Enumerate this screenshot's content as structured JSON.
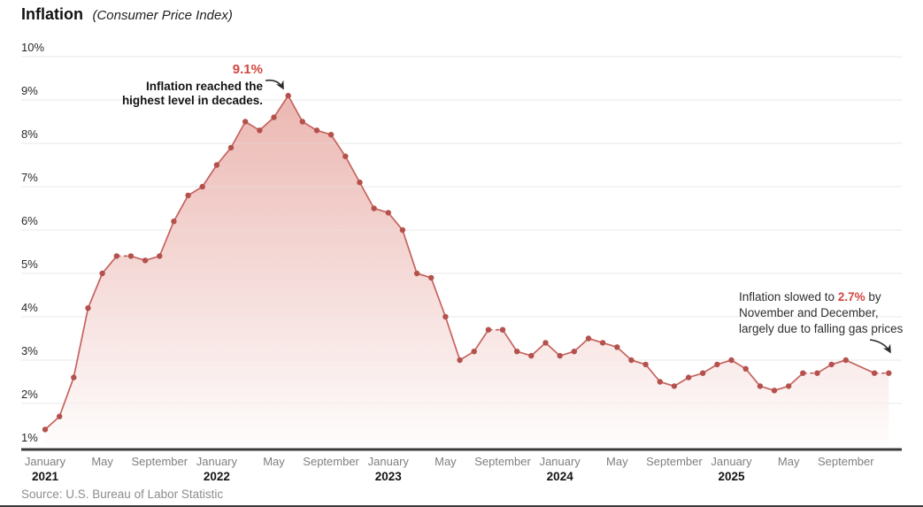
{
  "header": {
    "title": "Inflation",
    "subtitle": "(Consumer Price Index)"
  },
  "source": "Source: U.S. Bureau of Labor Statistic",
  "colors": {
    "accent_red": "#d2473f",
    "line": "#c5635e",
    "dot": "#b5514d",
    "area_top": "#e9aea8",
    "area_bottom": "#fefcfc",
    "grid": "#e8e8e8",
    "axis": "#3b3b3b",
    "month_label": "#7f7f7f",
    "year_label": "#141414",
    "y_label": "#2a2a2a",
    "arrow": "#2b2b2b"
  },
  "chart_data": {
    "type": "area",
    "title": "Inflation (Consumer Price Index)",
    "xlabel": "",
    "ylabel": "",
    "unit": "%",
    "ylim": [
      1,
      10
    ],
    "grid": true,
    "y_ticks": [
      "1%",
      "2%",
      "3%",
      "4%",
      "5%",
      "6%",
      "7%",
      "8%",
      "9%",
      "10%"
    ],
    "x_months": [
      "Jan 2021",
      "Feb 2021",
      "Mar 2021",
      "Apr 2021",
      "May 2021",
      "Jun 2021",
      "Jul 2021",
      "Aug 2021",
      "Sep 2021",
      "Oct 2021",
      "Nov 2021",
      "Dec 2021",
      "Jan 2022",
      "Feb 2022",
      "Mar 2022",
      "Apr 2022",
      "May 2022",
      "Jun 2022",
      "Jul 2022",
      "Aug 2022",
      "Sep 2022",
      "Oct 2022",
      "Nov 2022",
      "Dec 2022",
      "Jan 2023",
      "Feb 2023",
      "Mar 2023",
      "Apr 2023",
      "May 2023",
      "Jun 2023",
      "Jul 2023",
      "Aug 2023",
      "Sep 2023",
      "Oct 2023",
      "Nov 2023",
      "Dec 2023",
      "Jan 2024",
      "Feb 2024",
      "Mar 2024",
      "Apr 2024",
      "May 2024",
      "Jun 2024",
      "Jul 2024",
      "Aug 2024",
      "Sep 2024",
      "Oct 2024",
      "Nov 2024",
      "Dec 2024",
      "Jan 2025",
      "Feb 2025",
      "Mar 2025",
      "Apr 2025",
      "May 2025",
      "Jun 2025",
      "Jul 2025",
      "Aug 2025",
      "Sep 2025",
      "Oct 2025",
      "Nov 2025",
      "Dec 2025"
    ],
    "values": [
      1.4,
      1.7,
      2.6,
      4.2,
      5.0,
      5.4,
      5.4,
      5.3,
      5.4,
      6.2,
      6.8,
      7.0,
      7.5,
      7.9,
      8.5,
      8.3,
      8.6,
      9.1,
      8.5,
      8.3,
      8.2,
      7.7,
      7.1,
      6.5,
      6.4,
      6.0,
      5.0,
      4.9,
      4.0,
      3.0,
      3.2,
      3.7,
      3.7,
      3.2,
      3.1,
      3.4,
      3.1,
      3.2,
      3.5,
      3.4,
      3.3,
      3.0,
      2.9,
      2.5,
      2.4,
      2.6,
      2.7,
      2.9,
      3.0,
      2.8,
      2.4,
      2.3,
      2.4,
      2.7,
      2.7,
      2.9,
      3.0,
      null,
      2.7,
      2.7
    ],
    "missing_months": [
      "Oct 2025"
    ],
    "dashed_segments": [
      [
        "Jun 2021",
        "Jul 2021"
      ],
      [
        "Aug 2023",
        "Sep 2023"
      ],
      [
        "Jun 2025",
        "Jul 2025"
      ],
      [
        "Nov 2025",
        "Dec 2025"
      ]
    ],
    "x_ticks": [
      {
        "i": 0,
        "month": "January",
        "year": "2021"
      },
      {
        "i": 4,
        "month": "May"
      },
      {
        "i": 8,
        "month": "September"
      },
      {
        "i": 12,
        "month": "January",
        "year": "2022"
      },
      {
        "i": 16,
        "month": "May"
      },
      {
        "i": 20,
        "month": "September"
      },
      {
        "i": 24,
        "month": "January",
        "year": "2023"
      },
      {
        "i": 28,
        "month": "May"
      },
      {
        "i": 32,
        "month": "September"
      },
      {
        "i": 36,
        "month": "January",
        "year": "2024"
      },
      {
        "i": 40,
        "month": "May"
      },
      {
        "i": 44,
        "month": "September"
      },
      {
        "i": 48,
        "month": "January",
        "year": "2025"
      },
      {
        "i": 52,
        "month": "May"
      },
      {
        "i": 56,
        "month": "September"
      }
    ],
    "annotations": {
      "peak": {
        "value": "9.1%",
        "lines": [
          "Inflation reached the",
          "highest level in decades."
        ],
        "points_to": "Jun 2022"
      },
      "recent": {
        "pre": "Inflation slowed to ",
        "value": "2.7%",
        "post": " by",
        "line2": "November and December,",
        "line3": "largely due to falling gas prices",
        "points_to": "Dec 2025"
      }
    }
  }
}
